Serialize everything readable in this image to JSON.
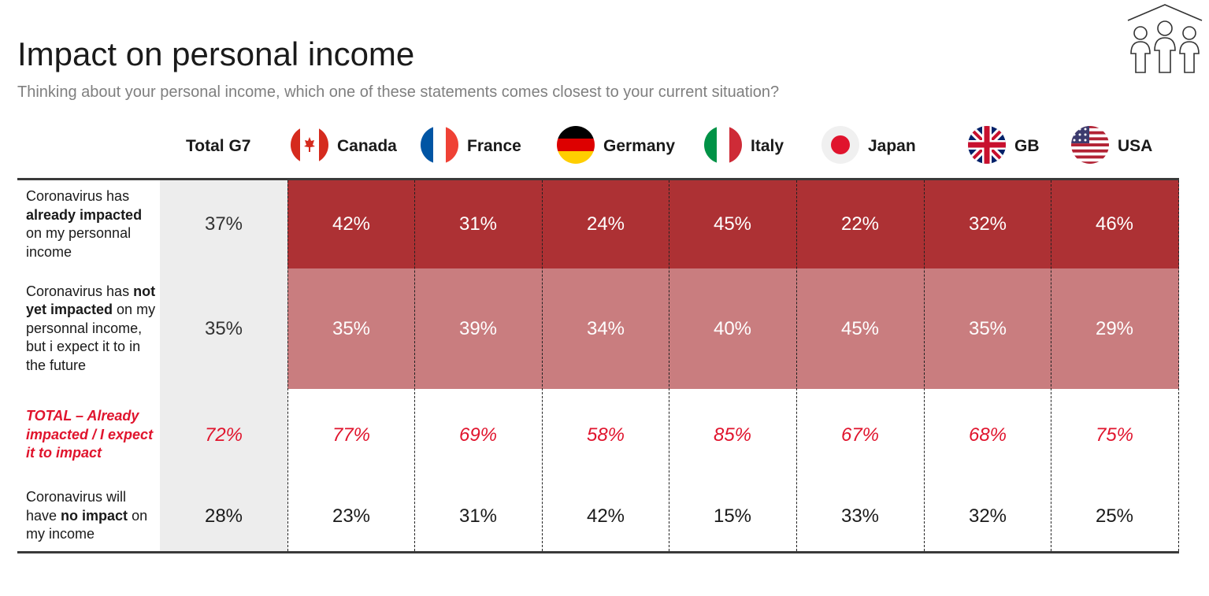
{
  "title": "Impact on personal income",
  "subtitle": "Thinking about your personal income, which one of these statements comes closest to your current situation?",
  "logo_icon": "people-house-icon",
  "colors": {
    "row1_bg": "#ad3134",
    "row2_bg": "#c97d7f",
    "total_col_bg": "#ededed",
    "highlight_text": "#e0142d"
  },
  "columns": [
    {
      "label": "Total G7",
      "flag": ""
    },
    {
      "label": "Canada",
      "flag": "canada-flag-icon"
    },
    {
      "label": "France",
      "flag": "france-flag-icon"
    },
    {
      "label": "Germany",
      "flag": "germany-flag-icon"
    },
    {
      "label": "Italy",
      "flag": "italy-flag-icon"
    },
    {
      "label": "Japan",
      "flag": "japan-flag-icon"
    },
    {
      "label": "GB",
      "flag": "uk-flag-icon"
    },
    {
      "label": "USA",
      "flag": "usa-flag-icon"
    }
  ],
  "chart_data": {
    "type": "table",
    "title": "Impact on personal income",
    "subtitle": "Thinking about your personal income, which one of these statements comes closest to your current situation?",
    "columns": [
      "Total G7",
      "Canada",
      "France",
      "Germany",
      "Italy",
      "Japan",
      "GB",
      "USA"
    ],
    "rows": [
      {
        "label_parts": [
          {
            "text": "Coronavirus has ",
            "bold": false
          },
          {
            "text": "already impacted",
            "bold": true
          },
          {
            "text": " on my personnal income",
            "bold": false
          }
        ],
        "values": [
          "37%",
          "42%",
          "31%",
          "24%",
          "45%",
          "22%",
          "32%",
          "46%"
        ]
      },
      {
        "label_parts": [
          {
            "text": "Coronavirus has ",
            "bold": false
          },
          {
            "text": "not yet impacted",
            "bold": true
          },
          {
            "text": " on my personnal income, but i expect it to in the future",
            "bold": false
          }
        ],
        "values": [
          "35%",
          "35%",
          "39%",
          "34%",
          "40%",
          "45%",
          "35%",
          "29%"
        ]
      },
      {
        "label_parts": [
          {
            "text": "TOTAL – Already impacted / I expect it to impact",
            "bold": true
          }
        ],
        "values": [
          "72%",
          "77%",
          "69%",
          "58%",
          "85%",
          "67%",
          "68%",
          "75%"
        ]
      },
      {
        "label_parts": [
          {
            "text": "Coronavirus will have ",
            "bold": false
          },
          {
            "text": "no impact",
            "bold": true
          },
          {
            "text": " on my income",
            "bold": false
          }
        ],
        "values": [
          "28%",
          "23%",
          "31%",
          "42%",
          "15%",
          "33%",
          "32%",
          "25%"
        ]
      }
    ]
  }
}
